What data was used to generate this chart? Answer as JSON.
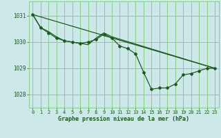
{
  "title": "Graphe pression niveau de la mer (hPa)",
  "bg_color": "#cce8e8",
  "grid_color": "#88cc88",
  "line_color": "#1a5c1a",
  "text_color": "#1a5c1a",
  "xlim": [
    -0.5,
    23.5
  ],
  "ylim": [
    1027.5,
    1031.55
  ],
  "yticks": [
    1028,
    1029,
    1030,
    1031
  ],
  "xticks": [
    0,
    1,
    2,
    3,
    4,
    5,
    6,
    7,
    8,
    9,
    10,
    11,
    12,
    13,
    14,
    15,
    16,
    17,
    18,
    19,
    20,
    21,
    22,
    23
  ],
  "line1_x": [
    0,
    1,
    2,
    3,
    4,
    5,
    6,
    7,
    8,
    9,
    10,
    11,
    12,
    13,
    14,
    15,
    16,
    17,
    18,
    19,
    20,
    21,
    22,
    23
  ],
  "line1_y": [
    1031.05,
    1030.55,
    1030.35,
    1030.15,
    1030.05,
    1030.0,
    1029.95,
    1030.0,
    1030.1,
    1030.3,
    1030.15,
    1029.85,
    1029.75,
    1029.55,
    1028.85,
    1028.2,
    1028.25,
    1028.25,
    1028.4,
    1028.75,
    1028.8,
    1028.9,
    1029.0,
    1029.0
  ],
  "line2_x": [
    0,
    1,
    2,
    3,
    4,
    5,
    6,
    7,
    8,
    9,
    10,
    23
  ],
  "line2_y": [
    1031.05,
    1030.55,
    1030.4,
    1030.2,
    1030.05,
    1030.0,
    1029.95,
    1029.9,
    1030.15,
    1030.35,
    1030.2,
    1029.0
  ],
  "line3_x": [
    0,
    23
  ],
  "line3_y": [
    1031.05,
    1029.0
  ],
  "markersize": 2.0
}
